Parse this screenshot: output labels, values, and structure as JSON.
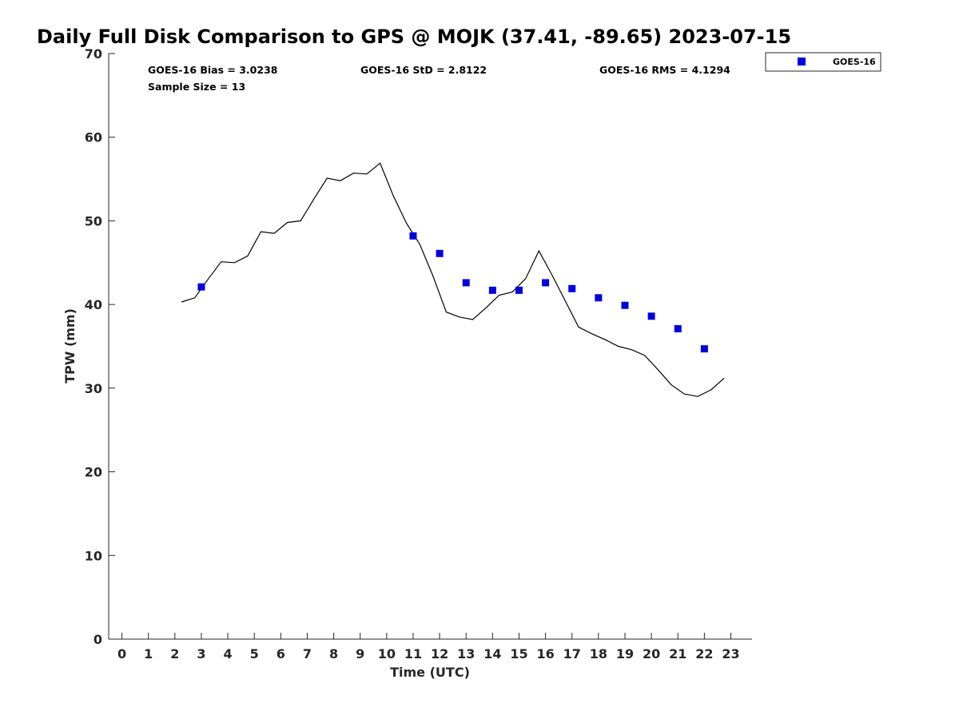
{
  "chart_data": {
    "type": "scatter",
    "title": "Daily Full Disk Comparison to GPS @ MOJK (37.41, -89.65) 2023-07-15",
    "xlabel": "Time (UTC)",
    "ylabel": "TPW (mm)",
    "xlim": [
      -0.5,
      23.8
    ],
    "ylim": [
      0,
      70
    ],
    "x_ticks": [
      "0",
      "1",
      "2",
      "3",
      "4",
      "5",
      "6",
      "7",
      "8",
      "9",
      "10",
      "11",
      "12",
      "13",
      "14",
      "15",
      "16",
      "17",
      "18",
      "19",
      "20",
      "21",
      "22",
      "23"
    ],
    "y_ticks": [
      "0",
      "10",
      "20",
      "30",
      "40",
      "50",
      "60",
      "70"
    ],
    "grid": false,
    "legend": {
      "position": "top-right",
      "entries": [
        "GOES-16"
      ]
    },
    "stats": {
      "bias": "GOES-16 Bias = 3.0238",
      "std": "GOES-16 StD = 2.8122",
      "rms": "GOES-16 RMS = 4.1294",
      "sample": "Sample Size = 13"
    },
    "series": [
      {
        "type": "scatter",
        "name": "GOES-16",
        "color": "#0000dd",
        "marker": "square",
        "x": [
          3,
          11,
          12,
          13,
          14,
          15,
          16,
          17,
          18,
          19,
          20,
          21,
          22
        ],
        "y": [
          42.1,
          48.2,
          46.1,
          42.6,
          41.7,
          41.7,
          42.6,
          41.9,
          40.8,
          39.9,
          38.6,
          37.1,
          34.7
        ]
      },
      {
        "type": "line",
        "color": "#000000",
        "x": [
          2.25,
          2.75,
          3.25,
          3.75,
          4.25,
          4.75,
          5.25,
          5.75,
          6.25,
          6.75,
          7.25,
          7.75,
          8.25,
          8.75,
          9.25,
          9.75,
          10.25,
          10.75,
          11.25,
          11.75,
          12.25,
          12.75,
          13.25,
          13.75,
          14.25,
          14.75,
          15.25,
          15.75,
          16.25,
          16.75,
          17.25,
          17.75,
          18.25,
          18.75,
          19.25,
          19.75,
          20.25,
          20.75,
          21.25,
          21.75,
          22.25,
          22.75
        ],
        "y": [
          40.3,
          40.8,
          43.0,
          45.1,
          45.0,
          45.8,
          48.7,
          48.5,
          49.8,
          50.0,
          52.6,
          55.1,
          54.8,
          55.7,
          55.6,
          56.9,
          53.0,
          49.7,
          47.2,
          43.4,
          39.1,
          38.5,
          38.2,
          39.6,
          41.1,
          41.5,
          43.1,
          46.4,
          43.5,
          40.4,
          37.3,
          36.5,
          35.8,
          35.0,
          34.6,
          33.9,
          32.2,
          30.4,
          29.3,
          29.0,
          29.8,
          31.2
        ]
      }
    ]
  }
}
